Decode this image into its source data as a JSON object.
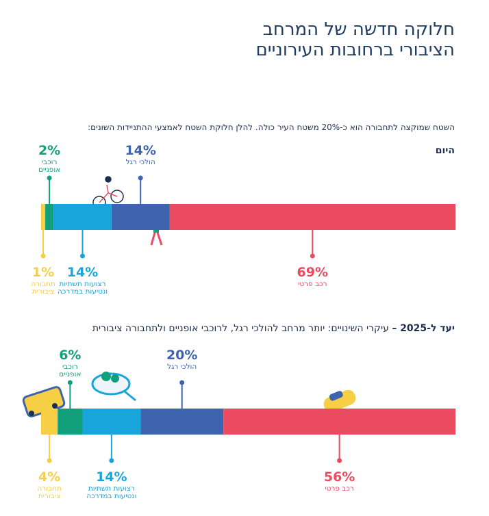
{
  "title_lines": [
    "חלוקה חדשה של המרחב",
    "הציבורי ברחובות העירוניים"
  ],
  "intro": "השטח שמוקצה לתחבורה הוא כ-20% משטח העיר כולה. להלן חלוקת השטח לאמצעי ההתניידות השונים:",
  "chart_data": [
    {
      "type": "stacked-bar",
      "title": "היום",
      "series": [
        {
          "name": "תחבורה ציבורית",
          "color": "#f7cf45",
          "values": [
            1
          ],
          "value_labels": [
            "1%"
          ]
        },
        {
          "name": "רוכבי אופניים",
          "color": "#12a07c",
          "values": [
            2
          ],
          "value_labels": [
            "2%"
          ]
        },
        {
          "name": "רצועות תשתיות ונטיעות במדרכה",
          "color": "#18a5db",
          "values": [
            14
          ],
          "value_labels": [
            "14%"
          ]
        },
        {
          "name": "הולכי רגל",
          "color": "#3e64af",
          "values": [
            14
          ],
          "value_labels": [
            "14%"
          ]
        },
        {
          "name": "רכב פרטי",
          "color": "#ea4b61",
          "values": [
            69
          ],
          "value_labels": [
            "69%"
          ]
        }
      ]
    },
    {
      "type": "stacked-bar",
      "title": "יעד ל-2025 –",
      "subtitle": "עיקרי השינויים: יותר מרחב להולכי רגל, לרוכבי אופניים ולתחבורה ציבורית",
      "series": [
        {
          "name": "תחבורה ציבורית",
          "color": "#f7cf45",
          "values": [
            4
          ],
          "value_labels": [
            "4%"
          ]
        },
        {
          "name": "רוכבי אופניים",
          "color": "#12a07c",
          "values": [
            6
          ],
          "value_labels": [
            "6%"
          ]
        },
        {
          "name": "רצועות תשתיות ונטיעות במדרכה",
          "color": "#18a5db",
          "values": [
            14
          ],
          "value_labels": [
            "14%"
          ]
        },
        {
          "name": "הולכי רגל",
          "color": "#3e64af",
          "values": [
            20
          ],
          "value_labels": [
            "20%"
          ]
        },
        {
          "name": "רכב פרטי",
          "color": "#ea4b61",
          "values": [
            56
          ],
          "value_labels": [
            "56%"
          ]
        }
      ]
    }
  ]
}
